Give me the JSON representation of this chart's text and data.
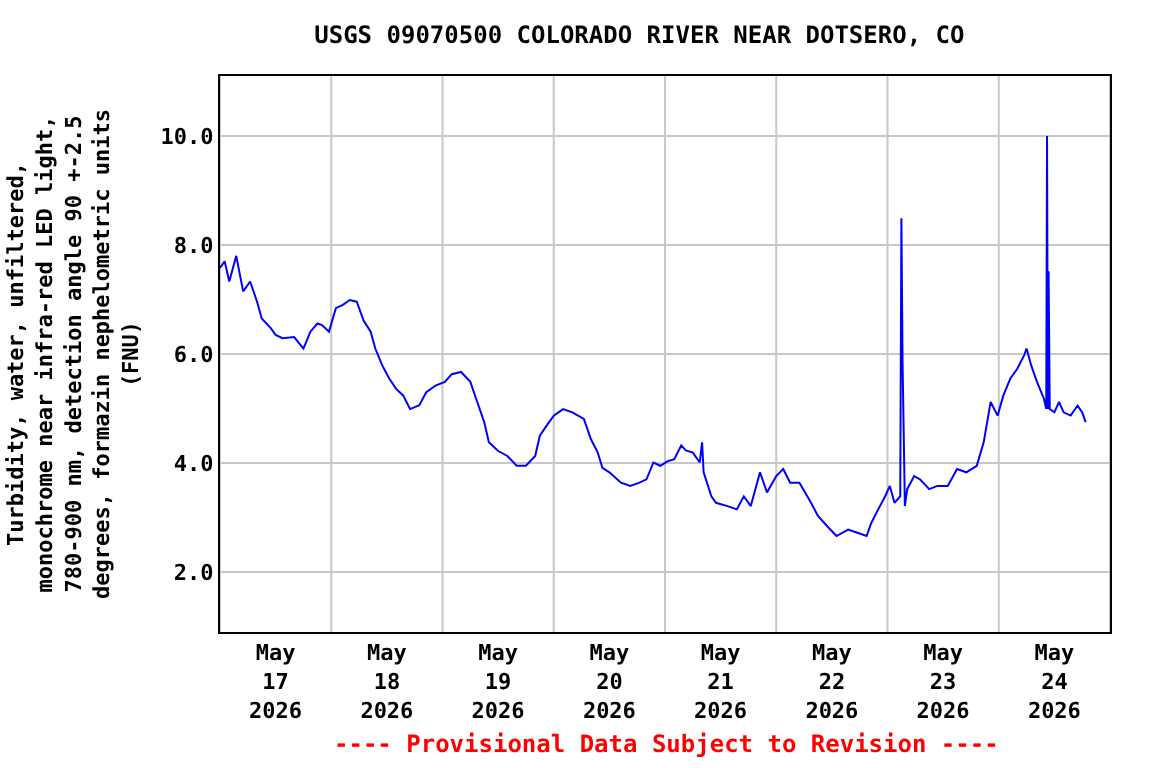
{
  "chart_data": {
    "type": "line",
    "title": "USGS 09070500 COLORADO RIVER NEAR DOTSERO, CO",
    "ylabel": "Turbidity, water, unfiltered,\nmonochrome near infra-red LED light,\n780-900 nm, detection angle 90 +-2.5\ndegrees, formazin nephelometric units\n(FNU)",
    "annotations": [
      "---- Provisional Data Subject to Revision ----"
    ],
    "x": [
      "2026-05-17T00:00",
      "2026-05-17T01:00",
      "2026-05-17T02:00",
      "2026-05-17T03:30",
      "2026-05-17T05:00",
      "2026-05-17T06:30",
      "2026-05-17T08:00",
      "2026-05-17T09:00",
      "2026-05-17T11:00",
      "2026-05-17T12:00",
      "2026-05-17T13:30",
      "2026-05-17T16:00",
      "2026-05-17T18:00",
      "2026-05-17T19:30",
      "2026-05-17T21:00",
      "2026-05-17T22:00",
      "2026-05-17T23:30",
      "2026-05-18T01:00",
      "2026-05-18T02:30",
      "2026-05-18T04:00",
      "2026-05-18T05:30",
      "2026-05-18T07:00",
      "2026-05-18T08:30",
      "2026-05-18T09:30",
      "2026-05-18T11:00",
      "2026-05-18T12:30",
      "2026-05-18T14:00",
      "2026-05-18T15:30",
      "2026-05-18T17:00",
      "2026-05-18T19:00",
      "2026-05-18T20:30",
      "2026-05-18T22:30",
      "2026-05-19T00:30",
      "2026-05-19T02:00",
      "2026-05-19T04:00",
      "2026-05-19T06:00",
      "2026-05-19T07:30",
      "2026-05-19T09:00",
      "2026-05-19T10:00",
      "2026-05-19T12:00",
      "2026-05-19T14:00",
      "2026-05-19T16:00",
      "2026-05-19T18:00",
      "2026-05-19T20:00",
      "2026-05-19T21:00",
      "2026-05-19T22:30",
      "2026-05-20T00:00",
      "2026-05-20T02:00",
      "2026-05-20T04:00",
      "2026-05-20T06:30",
      "2026-05-20T08:00",
      "2026-05-20T09:30",
      "2026-05-20T10:30",
      "2026-05-20T12:00",
      "2026-05-20T14:30",
      "2026-05-20T16:30",
      "2026-05-20T18:30",
      "2026-05-20T20:00",
      "2026-05-20T21:30",
      "2026-05-20T23:00",
      "2026-05-21T00:30",
      "2026-05-21T02:00",
      "2026-05-21T03:30",
      "2026-05-21T04:30",
      "2026-05-21T06:00",
      "2026-05-21T07:30",
      "2026-05-21T08:00",
      "2026-05-21T08:20",
      "2026-05-21T10:00",
      "2026-05-21T11:00",
      "2026-05-21T13:30",
      "2026-05-21T15:30",
      "2026-05-21T17:00",
      "2026-05-21T18:30",
      "2026-05-21T20:30",
      "2026-05-21T22:00",
      "2026-05-22T00:00",
      "2026-05-22T01:30",
      "2026-05-22T03:00",
      "2026-05-22T05:00",
      "2026-05-22T07:30",
      "2026-05-22T09:00",
      "2026-05-22T11:00",
      "2026-05-22T13:00",
      "2026-05-22T15:30",
      "2026-05-22T17:30",
      "2026-05-22T19:30",
      "2026-05-22T20:30",
      "2026-05-22T22:00",
      "2026-05-22T23:30",
      "2026-05-23T00:30",
      "2026-05-23T01:30",
      "2026-05-23T02:45",
      "2026-05-23T03:00",
      "2026-05-23T03:15",
      "2026-05-23T03:45",
      "2026-05-23T04:15",
      "2026-05-23T05:45",
      "2026-05-23T07:00",
      "2026-05-23T09:00",
      "2026-05-23T10:45",
      "2026-05-23T13:00",
      "2026-05-23T15:00",
      "2026-05-23T17:00",
      "2026-05-23T19:15",
      "2026-05-23T20:45",
      "2026-05-23T22:15",
      "2026-05-23T23:45",
      "2026-05-24T01:00",
      "2026-05-24T02:30",
      "2026-05-24T04:00",
      "2026-05-24T05:30",
      "2026-05-24T06:00",
      "2026-05-24T07:00",
      "2026-05-24T08:15",
      "2026-05-24T09:45",
      "2026-05-24T10:15",
      "2026-05-24T10:25",
      "2026-05-24T10:35",
      "2026-05-24T10:45",
      "2026-05-24T11:00",
      "2026-05-24T12:00",
      "2026-05-24T13:00",
      "2026-05-24T14:00",
      "2026-05-24T15:30",
      "2026-05-24T17:00",
      "2026-05-24T18:00",
      "2026-05-24T18:45"
    ],
    "series": [
      {
        "color": "#0000ff",
        "values": [
          7.58,
          7.7,
          7.33,
          7.8,
          7.15,
          7.33,
          6.96,
          6.65,
          6.47,
          6.35,
          6.29,
          6.31,
          6.1,
          6.41,
          6.56,
          6.53,
          6.41,
          6.84,
          6.9,
          6.99,
          6.96,
          6.61,
          6.41,
          6.1,
          5.79,
          5.55,
          5.36,
          5.24,
          4.99,
          5.06,
          5.3,
          5.42,
          5.49,
          5.63,
          5.67,
          5.49,
          5.12,
          4.75,
          4.38,
          4.22,
          4.13,
          3.95,
          3.95,
          4.13,
          4.5,
          4.69,
          4.87,
          4.99,
          4.93,
          4.81,
          4.44,
          4.19,
          3.91,
          3.83,
          3.64,
          3.58,
          3.64,
          3.7,
          4.01,
          3.95,
          4.03,
          4.07,
          4.32,
          4.23,
          4.19,
          4.01,
          4.38,
          3.83,
          3.39,
          3.27,
          3.21,
          3.15,
          3.39,
          3.21,
          3.83,
          3.46,
          3.76,
          3.89,
          3.64,
          3.64,
          3.27,
          3.03,
          2.84,
          2.66,
          2.78,
          2.72,
          2.66,
          2.9,
          3.15,
          3.39,
          3.58,
          3.27,
          3.39,
          8.49,
          5.85,
          3.21,
          3.52,
          3.76,
          3.7,
          3.52,
          3.58,
          3.58,
          3.89,
          3.83,
          3.95,
          4.38,
          5.12,
          4.87,
          5.24,
          5.55,
          5.73,
          5.98,
          6.1,
          5.79,
          5.49,
          5.18,
          4.99,
          10.0,
          4.99,
          7.52,
          4.99,
          4.93,
          5.12,
          4.93,
          4.87,
          5.05,
          4.93,
          4.75
        ]
      }
    ],
    "xlim": [
      "2026-05-17T00:00",
      "2026-05-25T00:00"
    ],
    "xticks": [
      {
        "value": "2026-05-17T00:00",
        "label": null
      },
      {
        "value": "2026-05-17T12:00",
        "label": "May\n17\n2026"
      },
      {
        "value": "2026-05-18T00:00",
        "label": null
      },
      {
        "value": "2026-05-18T12:00",
        "label": "May\n18\n2026"
      },
      {
        "value": "2026-05-19T00:00",
        "label": null
      },
      {
        "value": "2026-05-19T12:00",
        "label": "May\n19\n2026"
      },
      {
        "value": "2026-05-20T00:00",
        "label": null
      },
      {
        "value": "2026-05-20T12:00",
        "label": "May\n20\n2026"
      },
      {
        "value": "2026-05-21T00:00",
        "label": null
      },
      {
        "value": "2026-05-21T12:00",
        "label": "May\n21\n2026"
      },
      {
        "value": "2026-05-22T00:00",
        "label": null
      },
      {
        "value": "2026-05-22T12:00",
        "label": "May\n22\n2026"
      },
      {
        "value": "2026-05-23T00:00",
        "label": null
      },
      {
        "value": "2026-05-23T12:00",
        "label": "May\n23\n2026"
      },
      {
        "value": "2026-05-24T00:00",
        "label": null
      },
      {
        "value": "2026-05-24T12:00",
        "label": "May\n24\n2026"
      },
      {
        "value": "2026-05-25T00:00",
        "label": null
      }
    ],
    "ylim": [
      0.9,
      11.1
    ],
    "yticks": [
      {
        "value": 2,
        "label": "2.0"
      },
      {
        "value": 4,
        "label": "4.0"
      },
      {
        "value": 6,
        "label": "6.0"
      },
      {
        "value": 8,
        "label": "8.0"
      },
      {
        "value": 10,
        "label": "10.0"
      }
    ],
    "grid": true,
    "marker": "none",
    "line_style": "solid"
  }
}
